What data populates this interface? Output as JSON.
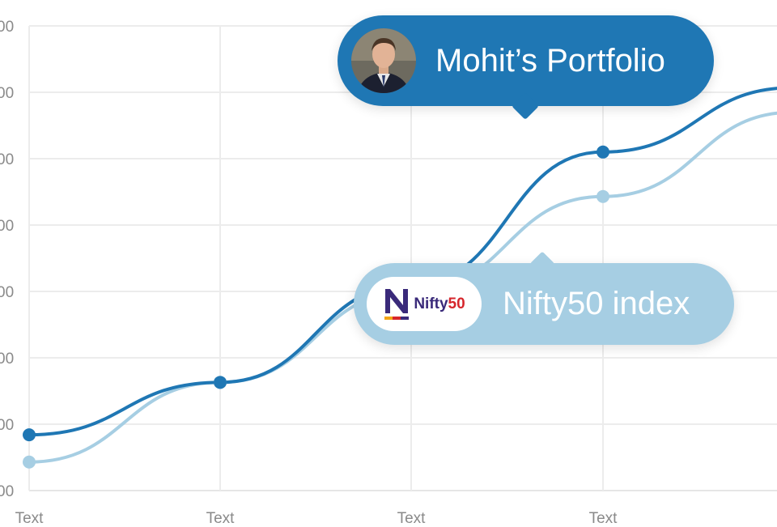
{
  "chart_data": {
    "type": "line",
    "x": [
      "Text",
      "Text",
      "Text",
      "Text",
      ""
    ],
    "y_ticks": [
      "00",
      "00",
      "00",
      "00",
      "00",
      "00",
      "00",
      "00"
    ],
    "ylim": [
      0,
      7
    ],
    "grid": true,
    "series": [
      {
        "name": "Mohit’s Portfolio",
        "color": "#1f77b4",
        "values": [
          0.84,
          1.63,
          3.1,
          5.1,
          6.07
        ]
      },
      {
        "name": "Nifty50 index",
        "color": "#a6cee3",
        "values": [
          0.43,
          1.63,
          3.0,
          4.43,
          5.7
        ]
      }
    ]
  },
  "callouts": {
    "portfolio": {
      "label": "Mohit’s Portfolio",
      "icon": "avatar-photo"
    },
    "index": {
      "label": "Nifty50 index",
      "logo_text_a": "Nifty",
      "logo_text_b": "50",
      "icon": "nifty50-logo"
    }
  }
}
